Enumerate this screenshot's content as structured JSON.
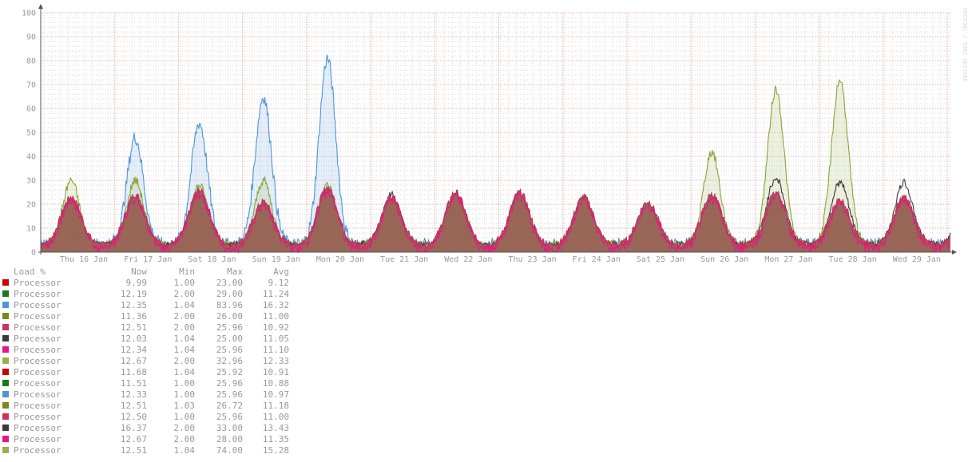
{
  "chart_data": {
    "type": "area",
    "y_ticks": [
      "0",
      "10",
      "20",
      "30",
      "40",
      "50",
      "60",
      "70",
      "80",
      "90",
      "100"
    ],
    "ylim": [
      0,
      100
    ],
    "x_tick_labels": [
      "Thu 16 Jan",
      "Fri 17 Jan",
      "Sat 18 Jan",
      "Sun 19 Jan",
      "Mon 20 Jan",
      "Tue 21 Jan",
      "Wed 22 Jan",
      "Thu 23 Jan",
      "Fri 24 Jan",
      "Sat 25 Jan",
      "Sun 26 Jan",
      "Mon 27 Jan",
      "Tue 28 Jan",
      "Wed 29 Jan"
    ],
    "grid": true,
    "series_daily_peaks": {
      "base_load": [
        23,
        24,
        26,
        21,
        27,
        23,
        25,
        25,
        23,
        21,
        24,
        25,
        22,
        23,
        21
      ],
      "blue_spike": [
        48,
        54,
        65,
        81
      ],
      "green_spike": [
        42,
        68,
        72
      ],
      "dark_spike": [
        29,
        31,
        29,
        27,
        28
      ]
    },
    "legend": {
      "header": [
        "Load %",
        "Now",
        "Min",
        "Max",
        "Avg"
      ],
      "rows": [
        {
          "name": "Processor",
          "color": "#cc0000",
          "now": "9.99",
          "min": "1.00",
          "max": "23.00",
          "avg": "9.12"
        },
        {
          "name": "Processor",
          "color": "#1a7a1a",
          "now": "12.19",
          "min": "2.00",
          "max": "29.00",
          "avg": "11.24"
        },
        {
          "name": "Processor",
          "color": "#4d94db",
          "now": "12.35",
          "min": "1.04",
          "max": "83.96",
          "avg": "16.32"
        },
        {
          "name": "Processor",
          "color": "#7a8a1a",
          "now": "11.36",
          "min": "2.00",
          "max": "26.00",
          "avg": "11.00"
        },
        {
          "name": "Processor",
          "color": "#cc3355",
          "now": "12.51",
          "min": "2.00",
          "max": "25.96",
          "avg": "10.92"
        },
        {
          "name": "Processor",
          "color": "#3a3a3a",
          "now": "12.03",
          "min": "1.04",
          "max": "25.00",
          "avg": "11.05"
        },
        {
          "name": "Processor",
          "color": "#ee1188",
          "now": "12.34",
          "min": "1.04",
          "max": "25.96",
          "avg": "11.10"
        },
        {
          "name": "Processor",
          "color": "#99b04d",
          "now": "12.67",
          "min": "2.00",
          "max": "32.96",
          "avg": "12.33"
        },
        {
          "name": "Processor",
          "color": "#cc0000",
          "now": "11.68",
          "min": "1.04",
          "max": "25.92",
          "avg": "10.91"
        },
        {
          "name": "Processor",
          "color": "#1a7a1a",
          "now": "11.51",
          "min": "1.00",
          "max": "25.96",
          "avg": "10.88"
        },
        {
          "name": "Processor",
          "color": "#4d94db",
          "now": "12.33",
          "min": "1.00",
          "max": "25.96",
          "avg": "10.97"
        },
        {
          "name": "Processor",
          "color": "#7a8a1a",
          "now": "12.51",
          "min": "1.03",
          "max": "26.72",
          "avg": "11.18"
        },
        {
          "name": "Processor",
          "color": "#cc3355",
          "now": "12.50",
          "min": "1.00",
          "max": "25.96",
          "avg": "11.00"
        },
        {
          "name": "Processor",
          "color": "#3a3a3a",
          "now": "16.37",
          "min": "2.00",
          "max": "33.00",
          "avg": "13.43"
        },
        {
          "name": "Processor",
          "color": "#ee1188",
          "now": "12.67",
          "min": "2.00",
          "max": "28.00",
          "avg": "11.35"
        },
        {
          "name": "Processor",
          "color": "#99b04d",
          "now": "12.51",
          "min": "1.04",
          "max": "74.00",
          "avg": "15.28"
        }
      ]
    }
  },
  "rrd_tag": "RRDTOOL / TOBI OETIKER"
}
